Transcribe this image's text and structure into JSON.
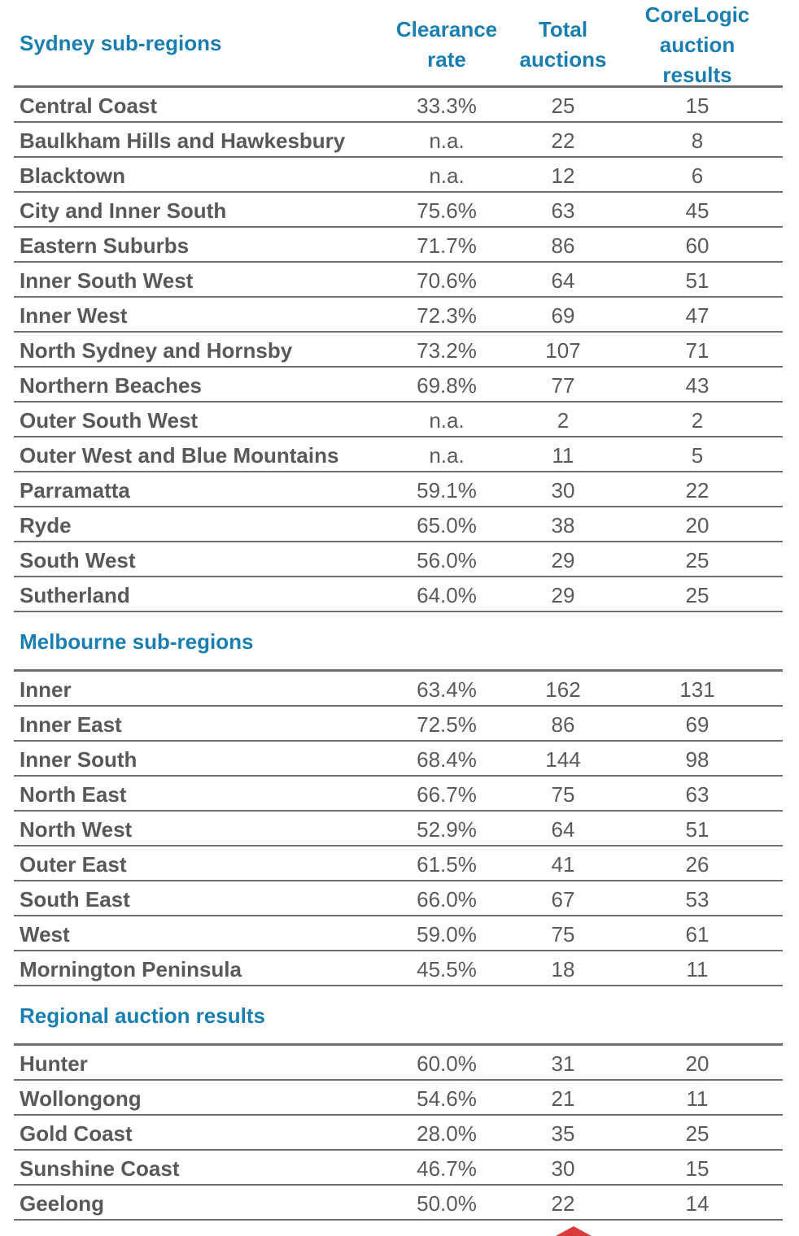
{
  "headers": {
    "sydney_title": "Sydney sub-regions",
    "clearance_rate": "Clearance\nrate",
    "total_auctions": "Total\nauctions",
    "corelogic_results": "CoreLogic\nauction\nresults"
  },
  "sections": [
    {
      "title": "Sydney sub-regions",
      "rows": [
        {
          "region": "Central Coast",
          "rate": "33.3%",
          "total": "25",
          "results": "15"
        },
        {
          "region": "Baulkham Hills and Hawkesbury",
          "rate": "n.a.",
          "total": "22",
          "results": "8"
        },
        {
          "region": "Blacktown",
          "rate": "n.a.",
          "total": "12",
          "results": "6"
        },
        {
          "region": "City and Inner South",
          "rate": "75.6%",
          "total": "63",
          "results": "45"
        },
        {
          "region": "Eastern Suburbs",
          "rate": "71.7%",
          "total": "86",
          "results": "60"
        },
        {
          "region": "Inner South West",
          "rate": "70.6%",
          "total": "64",
          "results": "51"
        },
        {
          "region": "Inner West",
          "rate": "72.3%",
          "total": "69",
          "results": "47"
        },
        {
          "region": "North Sydney and Hornsby",
          "rate": "73.2%",
          "total": "107",
          "results": "71"
        },
        {
          "region": "Northern Beaches",
          "rate": "69.8%",
          "total": "77",
          "results": "43"
        },
        {
          "region": "Outer South West",
          "rate": "n.a.",
          "total": "2",
          "results": "2"
        },
        {
          "region": "Outer West and Blue Mountains",
          "rate": "n.a.",
          "total": "11",
          "results": "5"
        },
        {
          "region": "Parramatta",
          "rate": "59.1%",
          "total": "30",
          "results": "22"
        },
        {
          "region": "Ryde",
          "rate": "65.0%",
          "total": "38",
          "results": "20"
        },
        {
          "region": "South West",
          "rate": "56.0%",
          "total": "29",
          "results": "25"
        },
        {
          "region": "Sutherland",
          "rate": "64.0%",
          "total": "29",
          "results": "25"
        }
      ]
    },
    {
      "title": "Melbourne sub-regions",
      "rows": [
        {
          "region": "Inner",
          "rate": "63.4%",
          "total": "162",
          "results": "131"
        },
        {
          "region": "Inner East",
          "rate": "72.5%",
          "total": "86",
          "results": "69"
        },
        {
          "region": "Inner South",
          "rate": "68.4%",
          "total": "144",
          "results": "98"
        },
        {
          "region": "North East",
          "rate": "66.7%",
          "total": "75",
          "results": "63"
        },
        {
          "region": "North West",
          "rate": "52.9%",
          "total": "64",
          "results": "51"
        },
        {
          "region": "Outer East",
          "rate": "61.5%",
          "total": "41",
          "results": "26"
        },
        {
          "region": "South East",
          "rate": "66.0%",
          "total": "67",
          "results": "53"
        },
        {
          "region": "West",
          "rate": "59.0%",
          "total": "75",
          "results": "61"
        },
        {
          "region": "Mornington Peninsula",
          "rate": "45.5%",
          "total": "18",
          "results": "11"
        }
      ]
    },
    {
      "title": "Regional auction results",
      "rows": [
        {
          "region": "Hunter",
          "rate": "60.0%",
          "total": "31",
          "results": "20"
        },
        {
          "region": "Wollongong",
          "rate": "54.6%",
          "total": "21",
          "results": "11"
        },
        {
          "region": "Gold Coast",
          "rate": "28.0%",
          "total": "35",
          "results": "25"
        },
        {
          "region": "Sunshine Coast",
          "rate": "46.7%",
          "total": "30",
          "results": "15"
        },
        {
          "region": "Geelong",
          "rate": "50.0%",
          "total": "22",
          "results": "14"
        }
      ]
    }
  ],
  "colors": {
    "heading_blue": "#1a7fb0",
    "text_grey": "#595959",
    "rule_grey": "#6e6e6e",
    "marker_red": "#d93b3b"
  }
}
